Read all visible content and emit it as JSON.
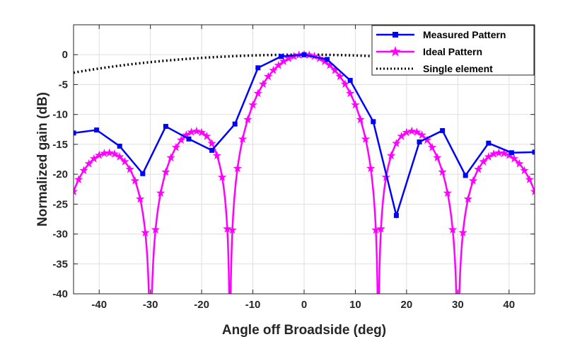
{
  "chart_data": {
    "type": "line",
    "xlabel": "Angle off Broadside (deg)",
    "ylabel": "Normalized gain (dB)",
    "xlim": [
      -45,
      45
    ],
    "ylim": [
      -40,
      5
    ],
    "xticks": [
      -40,
      -30,
      -20,
      -10,
      0,
      10,
      20,
      30,
      40
    ],
    "yticks": [
      0,
      -5,
      -10,
      -15,
      -20,
      -25,
      -30,
      -35,
      -40
    ],
    "xtick_labels": [
      "-40",
      "-30",
      "-20",
      "-10",
      "0",
      "10",
      "20",
      "30",
      "40"
    ],
    "ytick_labels": [
      "0",
      "-5",
      "-10",
      "-15",
      "-20",
      "-25",
      "-30",
      "-35",
      "-40"
    ],
    "grid": true,
    "legend_position": "top-right",
    "series": [
      {
        "name": "Measured Pattern",
        "color": "#0000ff",
        "marker": "square",
        "line_style": "solid",
        "x": [
          -45,
          -40.5,
          -36,
          -31.5,
          -27,
          -22.5,
          -18,
          -13.5,
          -9,
          -4.5,
          0,
          4.5,
          9,
          13.5,
          18,
          22.5,
          27,
          31.5,
          36,
          40.5,
          45
        ],
        "y": [
          -13.1,
          -12.6,
          -15.3,
          -19.9,
          -12.0,
          -14.1,
          -16.0,
          -11.6,
          -2.2,
          -0.3,
          0.0,
          -0.8,
          -4.3,
          -11.2,
          -26.9,
          -14.6,
          -12.7,
          -20.2,
          -14.8,
          -16.4,
          -16.3
        ]
      },
      {
        "name": "Ideal Pattern",
        "color": "#ff00ff",
        "marker": "star",
        "line_style": "solid",
        "x_step": 1.0,
        "x_range": [
          -45,
          45
        ],
        "model": "array_factor",
        "elements": 8,
        "spacing_wavelengths": 0.5,
        "floor_db": -45
      },
      {
        "name": "Single element",
        "color": "#000000",
        "marker": "none",
        "line_style": "dotted",
        "description_y": "20*log10(cos(angle))",
        "x_range": [
          -45,
          45
        ]
      }
    ]
  }
}
